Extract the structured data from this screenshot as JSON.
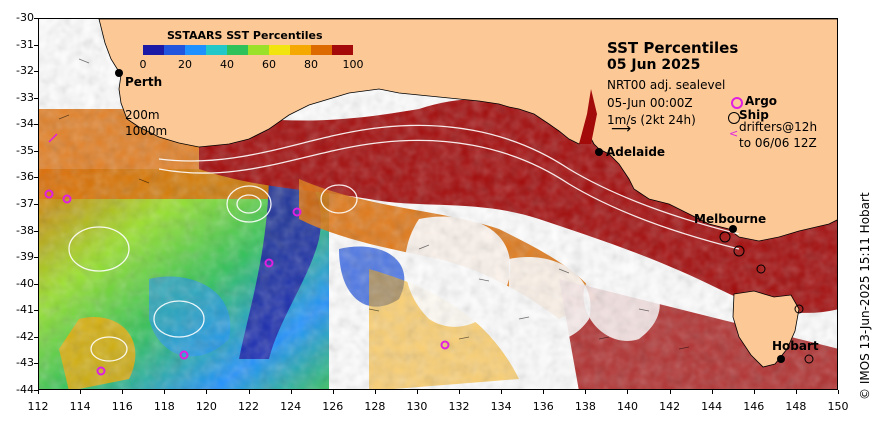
{
  "title": "SST Percentiles",
  "date": "05 Jun 2025",
  "info_lines": [
    "NRT00 adj. sealevel",
    "05-Jun 00:00Z",
    "1m/s (2kt 24h)"
  ],
  "legend": {
    "argo": "Argo",
    "ship": "Ship",
    "drifters_line1": "drifters@12h",
    "drifters_line2": "to 06/06 12Z"
  },
  "contour_labels": [
    "200m",
    "1000m"
  ],
  "colorbar": {
    "title": "SSTAARS SST Percentiles",
    "ticks": [
      "0",
      "20",
      "40",
      "60",
      "80",
      "100"
    ],
    "colors": [
      "#1a1aa6",
      "#2255dd",
      "#1e90ff",
      "#22c7c7",
      "#2fc25a",
      "#9be12a",
      "#f2e40f",
      "#f5a800",
      "#dd6a00",
      "#a50a0a"
    ]
  },
  "cities": [
    "Perth",
    "Adelaide",
    "Melbourne",
    "Hobart"
  ],
  "lat_labels": [
    "-30",
    "-31",
    "-32",
    "-33",
    "-34",
    "-35",
    "-36",
    "-37",
    "-38",
    "-39",
    "-40",
    "-41",
    "-42",
    "-43",
    "-44"
  ],
  "lon_labels": [
    "112",
    "114",
    "116",
    "118",
    "120",
    "122",
    "124",
    "126",
    "128",
    "130",
    "132",
    "134",
    "136",
    "138",
    "140",
    "142",
    "144",
    "146",
    "148",
    "150"
  ],
  "footer": "© IMOS 13-Jun-2025 15:11 Hobart",
  "colors": {
    "land": "#fcc896",
    "hot": "#a30a0a"
  }
}
